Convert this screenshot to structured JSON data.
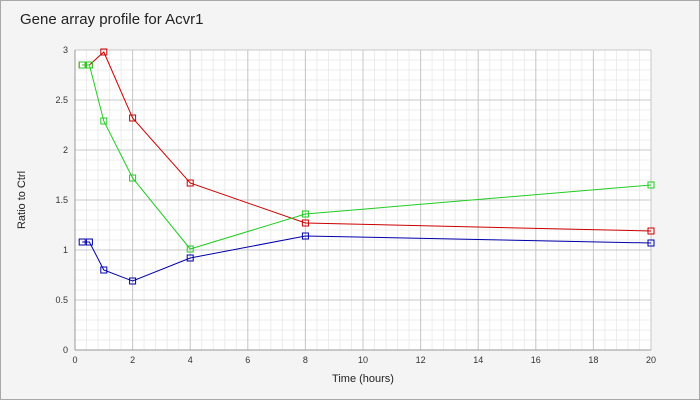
{
  "chart_data": {
    "type": "line",
    "title": "Gene array profile for Acvr1",
    "xlabel": "Time (hours)",
    "ylabel": "Ratio to Ctrl",
    "xlim": [
      0,
      20
    ],
    "ylim": [
      0,
      3
    ],
    "xticks": [
      0,
      2,
      4,
      6,
      8,
      10,
      12,
      14,
      16,
      18,
      20
    ],
    "yticks": [
      0,
      0.5,
      1,
      1.5,
      2,
      2.5,
      3
    ],
    "grid": true,
    "legend": "none",
    "series": [
      {
        "color": "#cc0000",
        "x": [
          0.25,
          0.5,
          1,
          2,
          4,
          8,
          20
        ],
        "y": [
          2.85,
          2.85,
          2.98,
          2.32,
          1.67,
          1.27,
          1.19
        ]
      },
      {
        "color": "#22cc22",
        "x": [
          0.25,
          0.5,
          1,
          2,
          4,
          8,
          20
        ],
        "y": [
          2.85,
          2.85,
          2.29,
          1.72,
          1.01,
          1.36,
          1.65
        ]
      },
      {
        "color": "#0000aa",
        "x": [
          0.25,
          0.5,
          1,
          2,
          4,
          8,
          20
        ],
        "y": [
          1.08,
          1.08,
          0.8,
          0.69,
          0.92,
          1.14,
          1.07
        ]
      }
    ]
  }
}
